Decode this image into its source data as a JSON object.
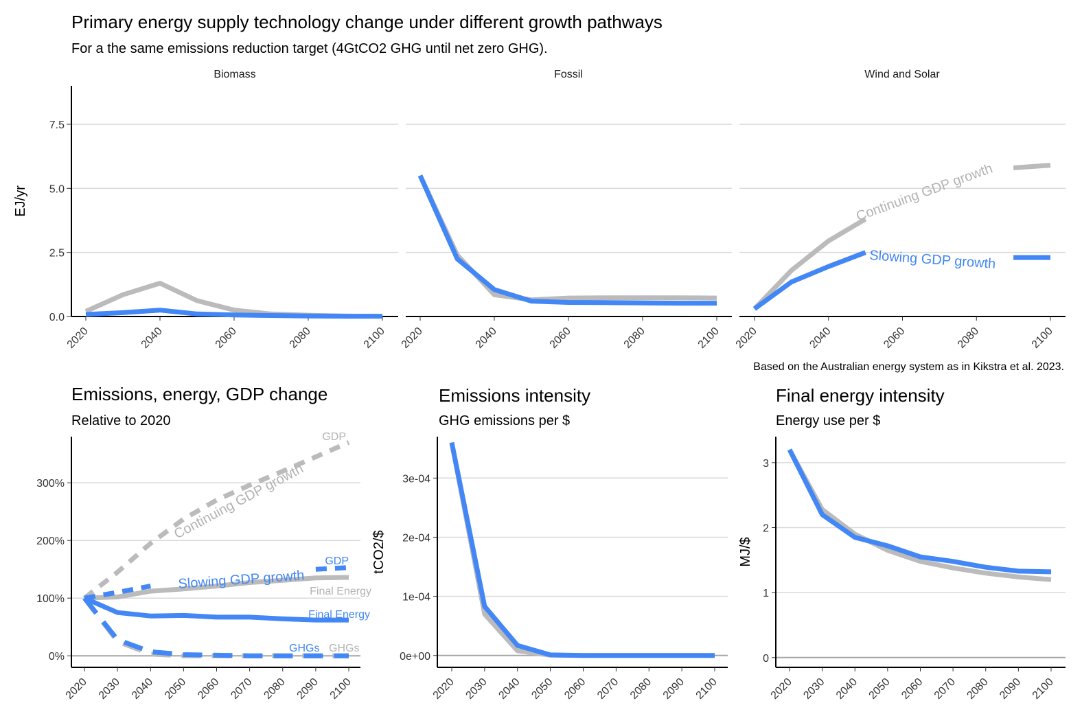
{
  "title": "Primary energy supply technology change under different growth pathways",
  "subtitle": "For a the same emissions reduction target (4GtCO2 GHG until net zero GHG).",
  "caption": "Based on the Australian energy system as in Kikstra et al. 2023.",
  "colors": {
    "continuing": "#bbbbbb",
    "slowing": "#4287f5",
    "grid": "#d9d9d9",
    "zero_line": "#a6a6a6",
    "axis": "#000000",
    "label_gray": "#b3b3b3",
    "label_blue": "#4287f5"
  },
  "chart_data": [
    {
      "type": "line",
      "panel": "Primary energy supply",
      "facets": [
        "Biomass",
        "Fossil",
        "Wind and Solar"
      ],
      "ylabel": "EJ/yr",
      "ylim": [
        0,
        9
      ],
      "yticks": [
        0,
        2.5,
        5,
        7.5
      ],
      "ytick_labels": [
        "0.0",
        "2.5",
        "5.0",
        "7.5"
      ],
      "xlim": [
        2020,
        2100
      ],
      "xticks": [
        2020,
        2040,
        2060,
        2080,
        2100
      ],
      "x": [
        2020,
        2030,
        2040,
        2050,
        2060,
        2070,
        2080,
        2090,
        2100
      ],
      "grid": "horizontal major",
      "series": [
        {
          "facet": "Biomass",
          "pathway": "continuing",
          "values": [
            0.2,
            0.85,
            1.3,
            0.62,
            0.25,
            0.1,
            0.05,
            0.02,
            0.01
          ]
        },
        {
          "facet": "Biomass",
          "pathway": "slowing",
          "values": [
            0.08,
            0.15,
            0.25,
            0.1,
            0.06,
            0.04,
            0.02,
            0.01,
            0.01
          ]
        },
        {
          "facet": "Fossil",
          "pathway": "continuing",
          "values": [
            5.5,
            2.4,
            0.85,
            0.65,
            0.72,
            0.73,
            0.73,
            0.73,
            0.72
          ]
        },
        {
          "facet": "Fossil",
          "pathway": "slowing",
          "values": [
            5.5,
            2.25,
            1.05,
            0.6,
            0.55,
            0.54,
            0.53,
            0.52,
            0.52
          ]
        },
        {
          "facet": "Wind and Solar",
          "pathway": "continuing",
          "values": [
            0.3,
            1.8,
            2.95,
            3.8,
            4.5,
            5.1,
            5.5,
            5.8,
            5.9
          ]
        },
        {
          "facet": "Wind and Solar",
          "pathway": "slowing",
          "values": [
            0.3,
            1.35,
            1.95,
            2.5,
            2.55,
            2.55,
            2.3,
            2.3,
            2.3
          ]
        }
      ],
      "annotations": [
        {
          "facet": "Wind and Solar",
          "text": "Continuing GDP growth",
          "color": "continuing"
        },
        {
          "facet": "Wind and Solar",
          "text": "Slowing GDP growth",
          "color": "slowing"
        }
      ]
    },
    {
      "type": "line",
      "title": "Emissions, energy, GDP change",
      "subtitle": "Relative to 2020",
      "ylabel": "",
      "ylim": [
        -20,
        380
      ],
      "yticks": [
        0,
        100,
        200,
        300
      ],
      "ytick_labels": [
        "0%",
        "100%",
        "200%",
        "300%"
      ],
      "xlim": [
        2020,
        2100
      ],
      "x": [
        2020,
        2030,
        2040,
        2050,
        2060,
        2070,
        2080,
        2090,
        2100
      ],
      "xtick_labels": [
        "2020",
        "2030",
        "2040",
        "2050",
        "2060",
        "2070",
        "2080",
        "2090",
        "2100"
      ],
      "series": [
        {
          "name": "GDP",
          "pathway": "continuing",
          "style": "dashed",
          "values": [
            100,
            145,
            195,
            237,
            270,
            296,
            320,
            345,
            370
          ]
        },
        {
          "name": "Final Energy",
          "pathway": "continuing",
          "style": "solid",
          "values": [
            100,
            102,
            112,
            116,
            121,
            127,
            131,
            135,
            136
          ]
        },
        {
          "name": "GHGs",
          "pathway": "continuing",
          "style": "longdash",
          "values": [
            100,
            25,
            3,
            0,
            0,
            0,
            0,
            0,
            0
          ]
        },
        {
          "name": "GDP",
          "pathway": "slowing",
          "style": "dashed",
          "values": [
            100,
            110,
            121,
            null,
            null,
            null,
            null,
            150,
            153
          ]
        },
        {
          "name": "Final Energy",
          "pathway": "slowing",
          "style": "solid",
          "values": [
            100,
            75,
            69,
            70,
            67,
            67,
            64,
            62,
            62
          ]
        },
        {
          "name": "GHGs",
          "pathway": "slowing",
          "style": "longdash",
          "values": [
            100,
            28,
            7,
            2,
            1,
            0,
            0,
            0,
            0
          ]
        }
      ],
      "labels": [
        {
          "text": "GDP",
          "color": "continuing"
        },
        {
          "text": "GDP",
          "color": "slowing"
        },
        {
          "text": "Final Energy",
          "color": "continuing"
        },
        {
          "text": "Final Energy",
          "color": "slowing"
        },
        {
          "text": "GHGs",
          "color": "slowing"
        },
        {
          "text": "GHGs",
          "color": "continuing"
        },
        {
          "text": "Continuing GDP growth",
          "color": "continuing"
        },
        {
          "text": "Slowing GDP growth",
          "color": "slowing"
        }
      ]
    },
    {
      "type": "line",
      "title": "Emissions intensity",
      "subtitle": "GHG emissions per $",
      "ylabel": "tCO2/$",
      "ylim": [
        -2e-05,
        0.00037
      ],
      "yticks": [
        0,
        0.0001,
        0.0002,
        0.0003
      ],
      "ytick_labels": [
        "0e+00",
        "1e-04",
        "2e-04",
        "3e-04"
      ],
      "xlim": [
        2020,
        2100
      ],
      "x": [
        2020,
        2030,
        2040,
        2050,
        2060,
        2070,
        2080,
        2090,
        2100
      ],
      "xtick_labels": [
        "2020",
        "2030",
        "2040",
        "2050",
        "2060",
        "2070",
        "2080",
        "2090",
        "2100"
      ],
      "series": [
        {
          "pathway": "continuing",
          "values": [
            0.00036,
            7e-05,
            8e-06,
            5e-07,
            0,
            0,
            0,
            0,
            0
          ]
        },
        {
          "pathway": "slowing",
          "values": [
            0.00036,
            8.3e-05,
            1.7e-05,
            1e-06,
            0,
            0,
            0,
            0,
            0
          ]
        }
      ]
    },
    {
      "type": "line",
      "title": "Final energy intensity",
      "subtitle": "Energy use per $",
      "ylabel": "MJ/$",
      "ylim": [
        -0.15,
        3.4
      ],
      "yticks": [
        0,
        1,
        2,
        3
      ],
      "ytick_labels": [
        "0",
        "1",
        "2",
        "3"
      ],
      "xlim": [
        2020,
        2100
      ],
      "x": [
        2020,
        2030,
        2040,
        2050,
        2060,
        2070,
        2080,
        2090,
        2100
      ],
      "xtick_labels": [
        "2020",
        "2030",
        "2040",
        "2050",
        "2060",
        "2070",
        "2080",
        "2090",
        "2100"
      ],
      "series": [
        {
          "pathway": "continuing",
          "values": [
            3.2,
            2.28,
            1.9,
            1.65,
            1.48,
            1.38,
            1.3,
            1.24,
            1.2
          ]
        },
        {
          "pathway": "slowing",
          "values": [
            3.2,
            2.2,
            1.85,
            1.72,
            1.55,
            1.48,
            1.39,
            1.33,
            1.32
          ]
        }
      ]
    }
  ]
}
